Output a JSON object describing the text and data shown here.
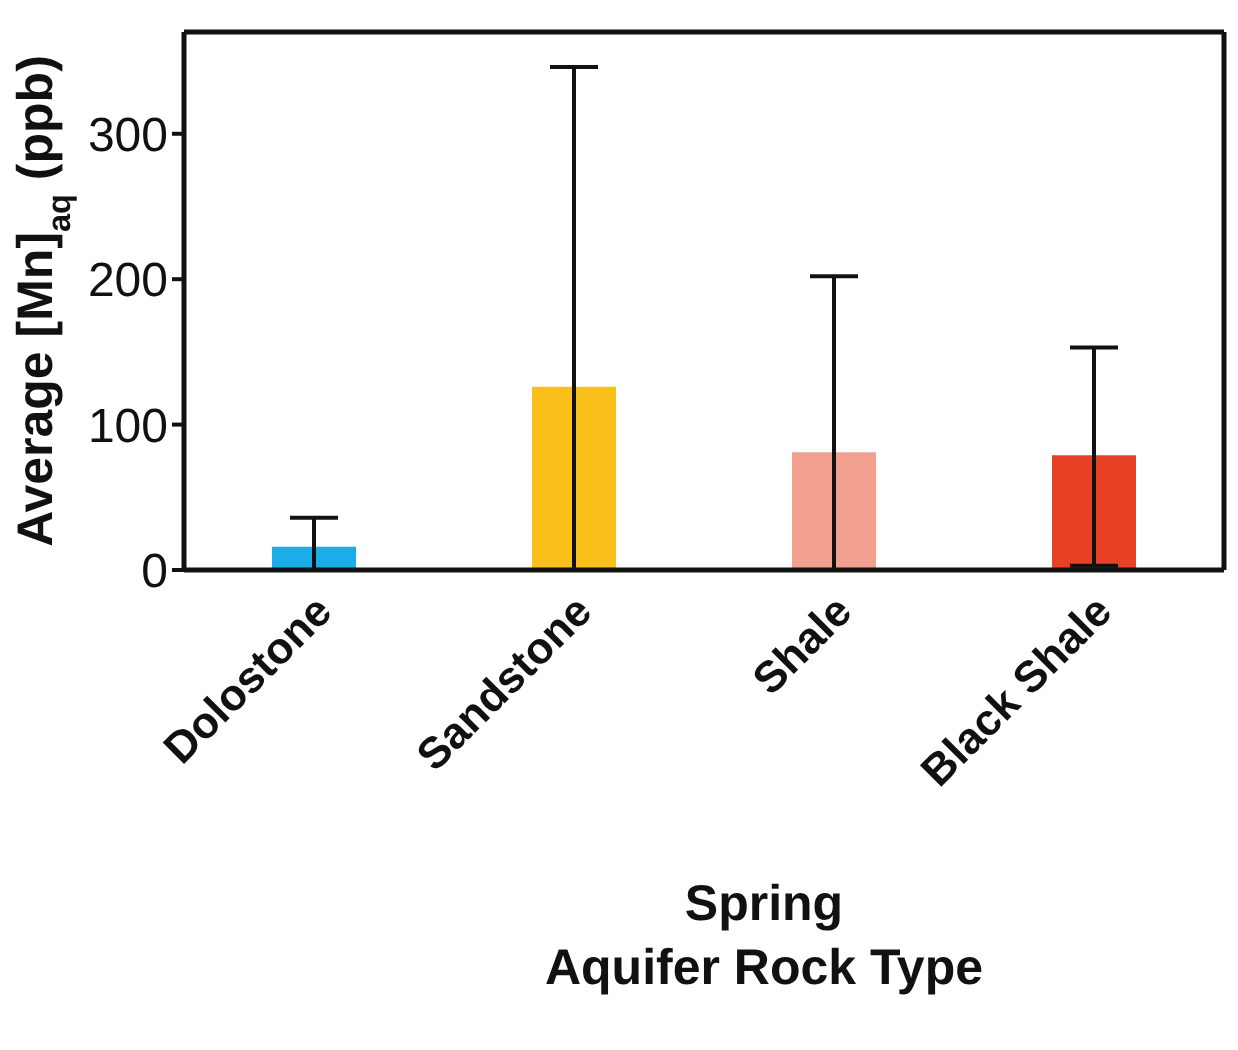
{
  "chart_data": {
    "type": "bar",
    "ylabel": "Average [Mn]$_{aq}$ (ppb)",
    "xlabel": "Spring\nAquifer Rock Type",
    "categories": [
      "Dolostone",
      "Sandstone",
      "Shale",
      "Black Shale"
    ],
    "values": [
      16,
      126,
      81,
      79
    ],
    "colors": [
      "#1aaee8",
      "#f9c01a",
      "#f4a090",
      "#e94126"
    ],
    "errors": [
      [
        0,
        36
      ],
      [
        0,
        346
      ],
      [
        0,
        202
      ],
      [
        3,
        153
      ]
    ],
    "ylim": [
      0,
      370
    ],
    "yticks": [
      0,
      100,
      200,
      300
    ],
    "grid": false,
    "legend": false
  }
}
